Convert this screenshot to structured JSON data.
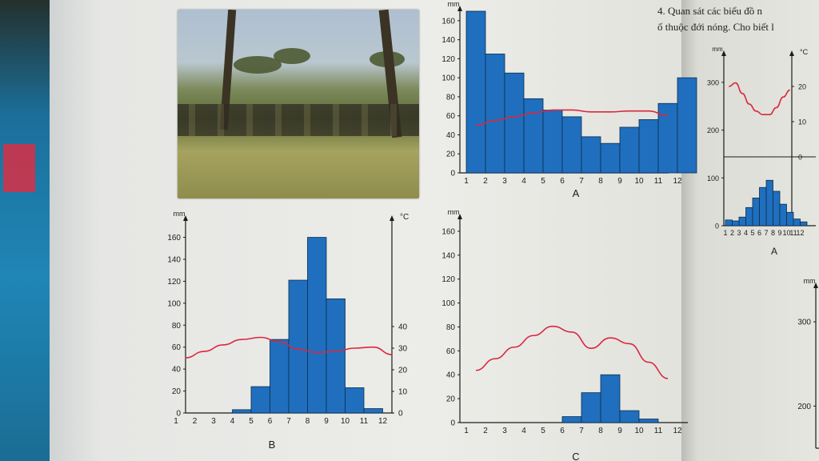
{
  "text_fragments": {
    "line1": "4. Quan sát các biểu đồ n",
    "line2": "ố thuộc đới nóng. Cho biết l"
  },
  "colors": {
    "bar_fill": "#1f6fbe",
    "bar_stroke": "#0f2d4d",
    "temp_line": "#d8283f",
    "axis": "#1c1c1c"
  },
  "chart_data": [
    {
      "type": "bar",
      "id": "A",
      "caption": "A",
      "ylabel": "mm",
      "categories": [
        "1",
        "2",
        "3",
        "4",
        "5",
        "6",
        "7",
        "8",
        "9",
        "10",
        "11",
        "12"
      ],
      "rain_values": [
        170,
        125,
        105,
        78,
        66,
        59,
        38,
        31,
        48,
        56,
        73,
        100
      ],
      "temp_values": [
        50,
        55,
        59,
        63,
        66,
        66,
        64,
        64,
        65,
        65,
        60,
        null
      ],
      "ylim": [
        0,
        170
      ],
      "yticks": [
        0,
        20,
        40,
        60,
        80,
        100,
        120,
        140,
        160
      ]
    },
    {
      "type": "bar",
      "id": "B",
      "caption": "B",
      "ylabel": "mm",
      "y2label": "°C",
      "categories": [
        "1",
        "2",
        "3",
        "4",
        "5",
        "6",
        "7",
        "8",
        "9",
        "10",
        "11",
        "12"
      ],
      "rain_values": [
        0,
        0,
        0,
        3,
        24,
        67,
        121,
        160,
        104,
        23,
        4,
        0
      ],
      "temp_values": [
        25.5,
        28.5,
        31.5,
        34,
        35,
        33,
        29.5,
        28,
        28.5,
        30,
        30.5,
        27
      ],
      "ylim": [
        0,
        175
      ],
      "yticks": [
        0,
        20,
        40,
        60,
        80,
        100,
        120,
        140,
        160
      ],
      "y2ticks": [
        0,
        10,
        20,
        30,
        40
      ],
      "y2lim": [
        0,
        60
      ]
    },
    {
      "type": "bar",
      "id": "C",
      "caption": "C",
      "ylabel": "mm",
      "categories": [
        "1",
        "2",
        "3",
        "4",
        "5",
        "6",
        "7",
        "8",
        "9",
        "10",
        "11",
        "12"
      ],
      "rain_values": [
        0,
        0,
        0,
        0,
        0,
        5,
        25,
        40,
        10,
        3,
        0,
        0
      ],
      "temp_values": [
        45,
        55,
        65,
        75,
        83,
        78,
        64,
        73,
        68,
        52,
        38,
        null
      ],
      "ylim": [
        0,
        170
      ],
      "yticks": [
        0,
        20,
        40,
        60,
        80,
        100,
        120,
        140,
        160
      ]
    },
    {
      "type": "bar",
      "id": "A-small",
      "caption": "A",
      "ylabel": "mm",
      "y2label": "°C",
      "categories": [
        "1",
        "2",
        "3",
        "4",
        "5",
        "6",
        "7",
        "8",
        "9",
        "10",
        "11",
        "12"
      ],
      "rain_values": [
        12,
        10,
        18,
        38,
        58,
        80,
        95,
        72,
        45,
        28,
        14,
        8
      ],
      "temp_values": [
        20,
        21,
        18,
        15,
        13,
        12,
        12,
        14,
        17,
        19,
        null,
        null
      ],
      "yticks": [
        0,
        100,
        200,
        300
      ],
      "y2ticks": [
        0,
        10,
        20
      ]
    },
    {
      "type": "bar",
      "id": "partial-right",
      "ylabel": "mm",
      "yticks": [
        200,
        300
      ]
    }
  ]
}
